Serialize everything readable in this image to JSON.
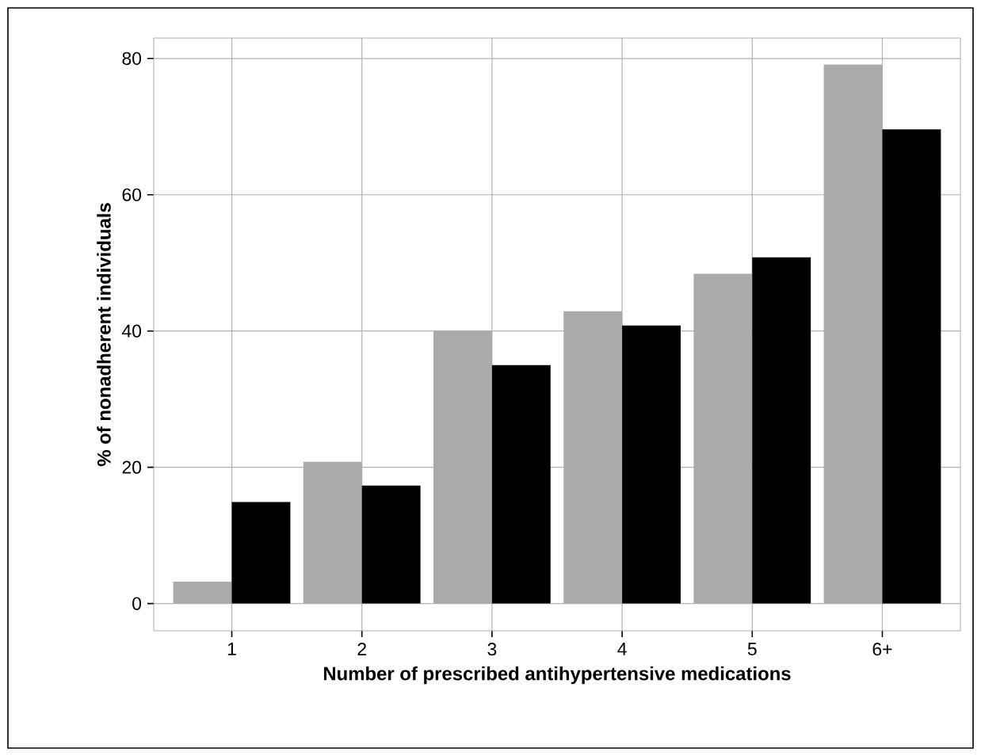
{
  "chart_data": {
    "type": "bar",
    "xlabel": "Number of prescribed antihypertensive medications",
    "ylabel": "% of nonadherent individuals",
    "categories": [
      "1",
      "2",
      "3",
      "4",
      "5",
      "6+"
    ],
    "series": [
      {
        "color": "#aaaaaa",
        "values": [
          3.2,
          20.8,
          40.0,
          42.9,
          48.4,
          79.1
        ]
      },
      {
        "color": "#000000",
        "values": [
          14.9,
          17.3,
          35.0,
          40.8,
          50.8,
          69.6
        ]
      }
    ],
    "ylim": [
      -4,
      83
    ],
    "yticks": [
      0,
      20,
      40,
      60,
      80
    ],
    "grid": true
  }
}
